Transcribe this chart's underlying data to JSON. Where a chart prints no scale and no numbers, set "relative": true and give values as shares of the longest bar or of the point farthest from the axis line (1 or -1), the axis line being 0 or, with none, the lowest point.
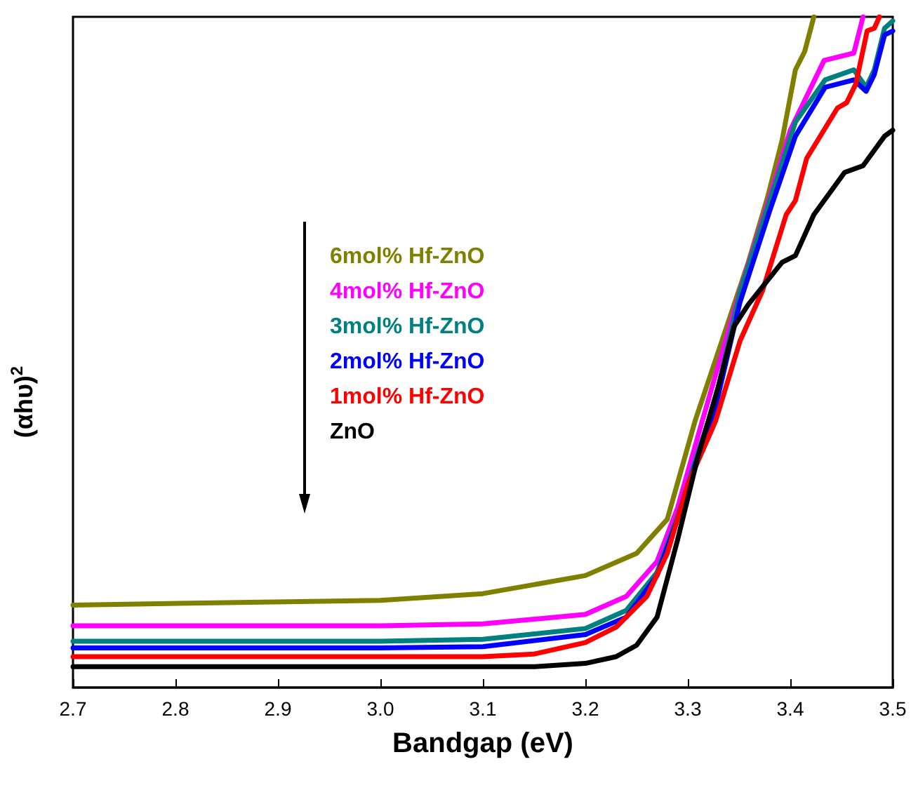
{
  "chart_data": {
    "type": "line",
    "xlabel": "Bandgap (eV)",
    "ylabel": "(αhυ)$^{2}$",
    "relative": true,
    "xlim": [
      2.7,
      3.5
    ],
    "xticks": [
      2.7,
      2.8,
      2.9,
      {
        "value": 3,
        "label": "3.0"
      },
      3.1,
      3.2,
      3.3,
      3.4,
      3.5
    ],
    "grid": false,
    "legend": "left",
    "marker": "none",
    "line_style": "solid",
    "series": [
      {
        "name": "6mol% Hf-ZnO",
        "color": "#808000",
        "x": [
          2.7,
          3.0,
          3.1,
          3.2,
          3.25,
          3.28,
          3.307,
          3.359,
          3.378,
          3.392,
          3.405,
          3.414,
          3.423
        ],
        "values": [
          0.123,
          0.13,
          0.14,
          0.167,
          0.2,
          0.251,
          0.397,
          0.634,
          0.732,
          0.816,
          0.921,
          0.948,
          1
        ]
      },
      {
        "name": "4mol% Hf-ZnO",
        "color": "#ff00ff",
        "x": [
          2.7,
          3.0,
          3.1,
          3.2,
          3.24,
          3.27,
          3.29,
          3.314,
          3.351,
          3.38,
          3.4,
          3.433,
          3.462,
          3.471
        ],
        "values": [
          0.092,
          0.092,
          0.095,
          0.109,
          0.136,
          0.188,
          0.268,
          0.397,
          0.592,
          0.732,
          0.831,
          0.935,
          0.946,
          1
        ]
      },
      {
        "name": "3mol% Hf-ZnO",
        "color": "#008080",
        "x": [
          2.7,
          3.0,
          3.1,
          3.2,
          3.24,
          3.27,
          3.29,
          3.31,
          3.327,
          3.351,
          3.38,
          3.405,
          3.434,
          3.462,
          3.474,
          3.482,
          3.492,
          3.5
        ],
        "values": [
          0.069,
          0.069,
          0.072,
          0.088,
          0.115,
          0.172,
          0.255,
          0.351,
          0.429,
          0.59,
          0.726,
          0.843,
          0.906,
          0.921,
          0.895,
          0.921,
          0.983,
          0.994
        ]
      },
      {
        "name": "2mol% Hf-ZnO",
        "color": "#0000ff",
        "x": [
          2.7,
          3.0,
          3.1,
          3.2,
          3.24,
          3.27,
          3.29,
          3.31,
          3.327,
          3.351,
          3.38,
          3.405,
          3.434,
          3.462,
          3.474,
          3.482,
          3.492,
          3.5
        ],
        "values": [
          0.059,
          0.059,
          0.061,
          0.079,
          0.105,
          0.167,
          0.251,
          0.345,
          0.418,
          0.575,
          0.711,
          0.822,
          0.895,
          0.906,
          0.889,
          0.914,
          0.973,
          0.979
        ]
      },
      {
        "name": "1mol% Hf-ZnO",
        "color": "#ff0000",
        "x": [
          2.7,
          3.0,
          3.1,
          3.15,
          3.2,
          3.23,
          3.26,
          3.28,
          3.3,
          3.327,
          3.351,
          3.373,
          3.396,
          3.405,
          3.416,
          3.446,
          3.455,
          3.464,
          3.475,
          3.482,
          3.487
        ],
        "values": [
          0.046,
          0.046,
          0.046,
          0.05,
          0.067,
          0.09,
          0.136,
          0.2,
          0.303,
          0.397,
          0.517,
          0.592,
          0.705,
          0.726,
          0.789,
          0.864,
          0.872,
          0.9,
          0.979,
          0.983,
          1
        ]
      },
      {
        "name": "ZnO",
        "color": "#000000",
        "x": [
          2.7,
          3.0,
          3.15,
          3.2,
          3.23,
          3.25,
          3.27,
          3.29,
          3.31,
          3.33,
          3.345,
          3.359,
          3.392,
          3.405,
          3.423,
          3.453,
          3.471,
          3.492,
          3.5
        ],
        "values": [
          0.031,
          0.031,
          0.031,
          0.036,
          0.046,
          0.063,
          0.105,
          0.22,
          0.345,
          0.45,
          0.538,
          0.571,
          0.634,
          0.644,
          0.705,
          0.768,
          0.778,
          0.822,
          0.831
        ]
      }
    ]
  }
}
